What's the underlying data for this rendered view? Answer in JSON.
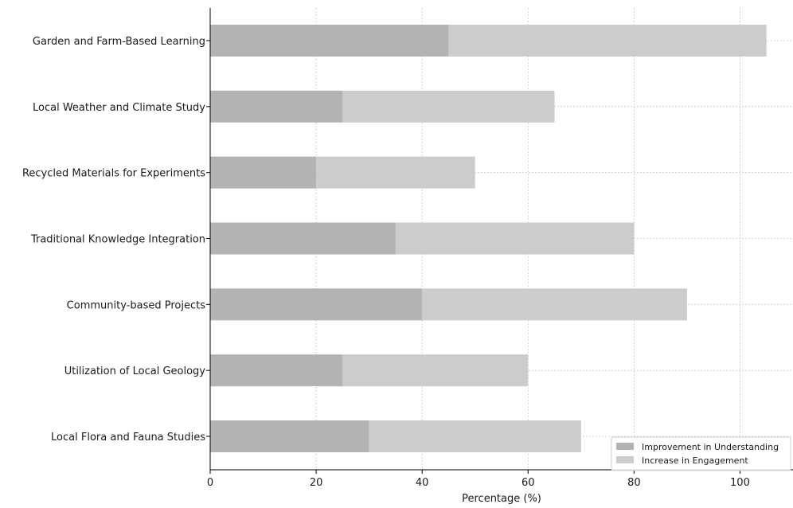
{
  "chart_data": {
    "type": "bar",
    "orientation": "horizontal",
    "stacked": true,
    "title": "",
    "xlabel": "Percentage (%)",
    "ylabel": "",
    "xlim": [
      0,
      110
    ],
    "xticks": [
      0,
      20,
      40,
      60,
      80,
      100
    ],
    "grid": true,
    "legend_position": "bottom-right",
    "categories": [
      "Local Flora and Fauna Studies",
      "Utilization of Local Geology",
      "Community-based Projects",
      "Traditional Knowledge Integration",
      "Recycled Materials for Experiments",
      "Local Weather and Climate Study",
      "Garden and Farm-Based Learning"
    ],
    "series": [
      {
        "name": "Improvement in Understanding",
        "color": "#b3b3b3",
        "values": [
          30,
          25,
          40,
          35,
          20,
          25,
          45
        ]
      },
      {
        "name": "Increase in Engagement",
        "color": "#cccccc",
        "values": [
          40,
          35,
          50,
          45,
          30,
          40,
          60
        ]
      }
    ]
  }
}
